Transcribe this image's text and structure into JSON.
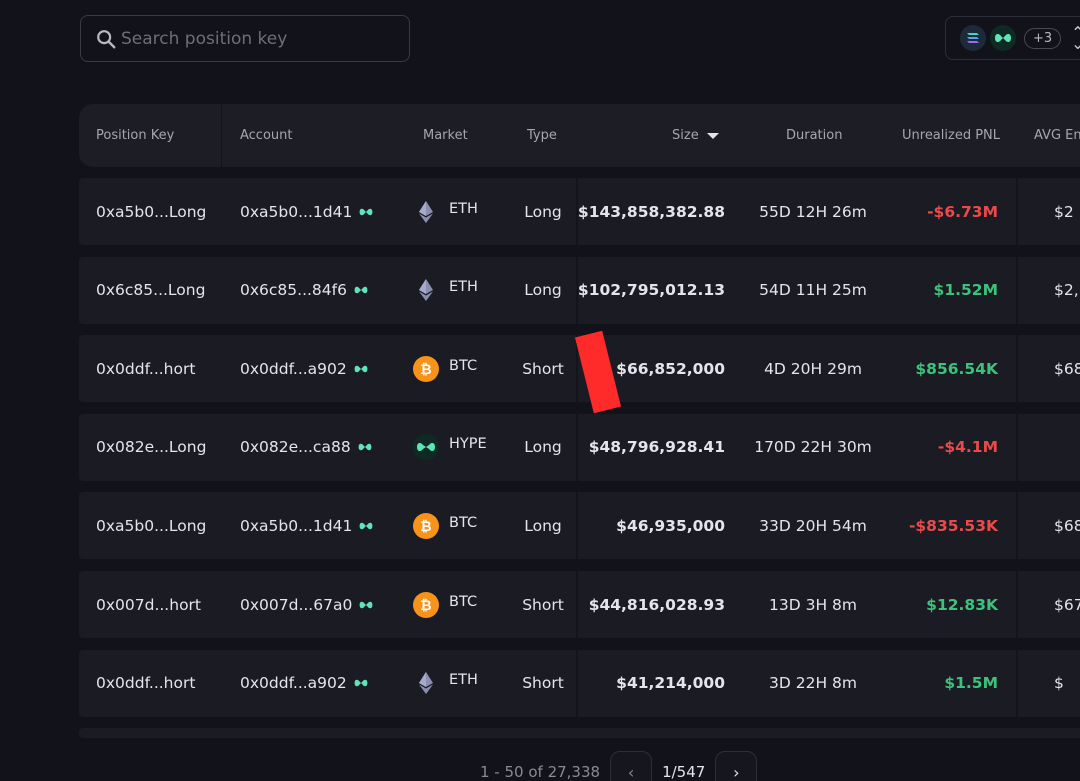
{
  "search": {
    "placeholder": "Search position key"
  },
  "chain_selector": {
    "icons": [
      "solana-chain-icon",
      "hyperliquid-chain-icon"
    ],
    "more_label": "+3"
  },
  "table": {
    "columns": [
      "Position Key",
      "Account",
      "Market",
      "Type",
      "Size",
      "Duration",
      "Unrealized PNL",
      "AVG Ent"
    ],
    "sorted_column": "Size",
    "rows": [
      {
        "position_key": "0xa5b0...Long",
        "account": "0xa5b0...1d41",
        "market": "ETH",
        "type": "Long",
        "size": "$143,858,382.88",
        "duration": "55D 12H 26m",
        "pnl": "-$6.73M",
        "pnl_sign": "neg",
        "avg_entry": "$2"
      },
      {
        "position_key": "0x6c85...Long",
        "account": "0x6c85...84f6",
        "market": "ETH",
        "type": "Long",
        "size": "$102,795,012.13",
        "duration": "54D 11H 25m",
        "pnl": "$1.52M",
        "pnl_sign": "pos",
        "avg_entry": "$2,"
      },
      {
        "position_key": "0x0ddf...hort",
        "account": "0x0ddf...a902",
        "market": "BTC",
        "type": "Short",
        "size": "$66,852,000",
        "duration": "4D 20H 29m",
        "pnl": "$856.54K",
        "pnl_sign": "pos",
        "avg_entry": "$68"
      },
      {
        "position_key": "0x082e...Long",
        "account": "0x082e...ca88",
        "market": "HYPE",
        "type": "Long",
        "size": "$48,796,928.41",
        "duration": "170D 22H 30m",
        "pnl": "-$4.1M",
        "pnl_sign": "neg",
        "avg_entry": ""
      },
      {
        "position_key": "0xa5b0...Long",
        "account": "0xa5b0...1d41",
        "market": "BTC",
        "type": "Long",
        "size": "$46,935,000",
        "duration": "33D 20H 54m",
        "pnl": "-$835.53K",
        "pnl_sign": "neg",
        "avg_entry": "$68"
      },
      {
        "position_key": "0x007d...hort",
        "account": "0x007d...67a0",
        "market": "BTC",
        "type": "Short",
        "size": "$44,816,028.93",
        "duration": "13D 3H 8m",
        "pnl": "$12.83K",
        "pnl_sign": "pos",
        "avg_entry": "$67"
      },
      {
        "position_key": "0x0ddf...hort",
        "account": "0x0ddf...a902",
        "market": "ETH",
        "type": "Short",
        "size": "$41,214,000",
        "duration": "3D 22H 8m",
        "pnl": "$1.5M",
        "pnl_sign": "pos",
        "avg_entry": "$"
      }
    ]
  },
  "pagination": {
    "range": "1 - 50 of 27,338",
    "page": "1/547"
  },
  "colors": {
    "positive": "#3ec27b",
    "negative": "#ec4a4a",
    "btc": "#f7931a",
    "hype": "#5fe3b8",
    "background": "#12121a"
  }
}
